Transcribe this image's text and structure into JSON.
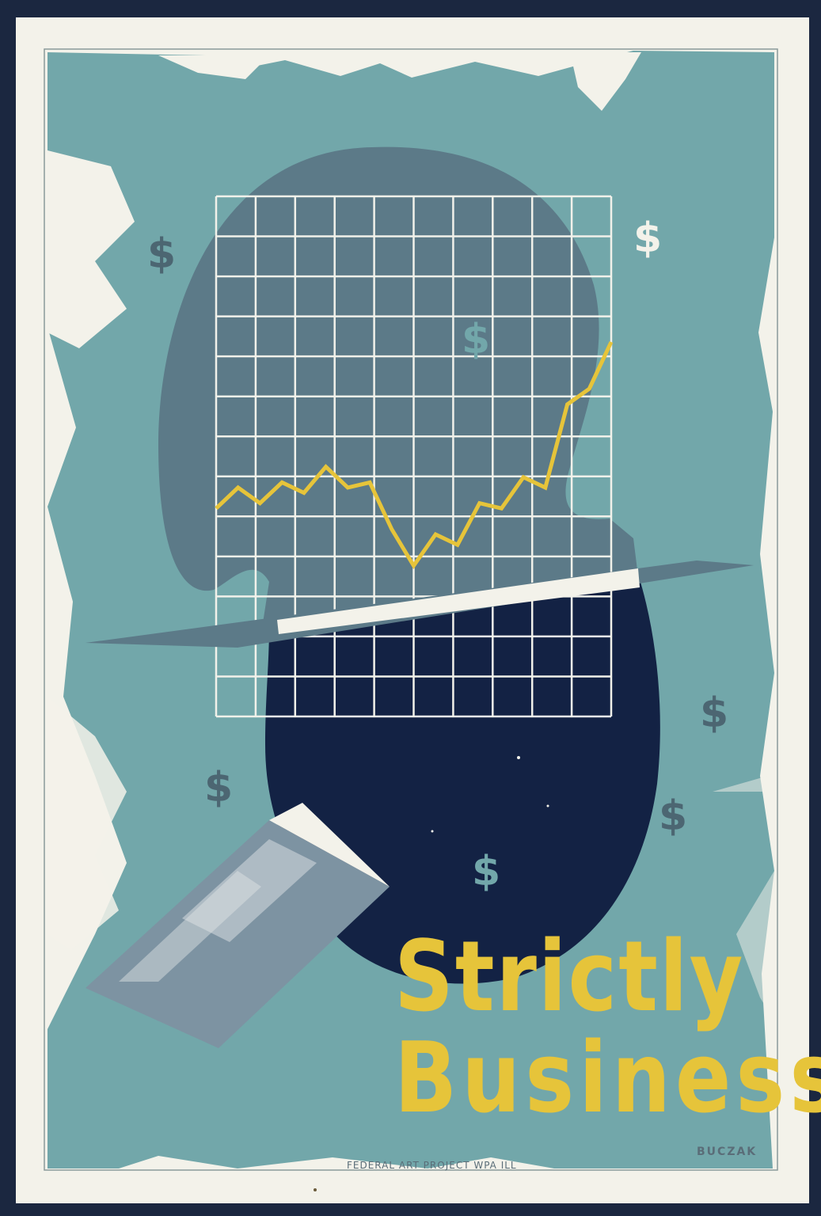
{
  "poster": {
    "title_line1": "Strictly",
    "title_line2": "Business",
    "credit": "FEDERAL ART PROJECT WPA ILL",
    "signature": "BUCZAK",
    "dollar_sign": "$"
  },
  "chart_data": {
    "type": "line",
    "values": [
      40,
      44,
      41,
      45,
      43,
      48,
      44,
      45,
      36,
      29,
      35,
      33,
      41,
      40,
      46,
      44,
      60,
      63,
      72
    ],
    "grid": true
  },
  "colors": {
    "background_teal": "#72a7aa",
    "head_slate": "#5c7a88",
    "head_navy": "#132244",
    "line_yellow": "#e6c43a",
    "grid_white": "#f1f1ea",
    "paper": "#f3f2ea"
  }
}
